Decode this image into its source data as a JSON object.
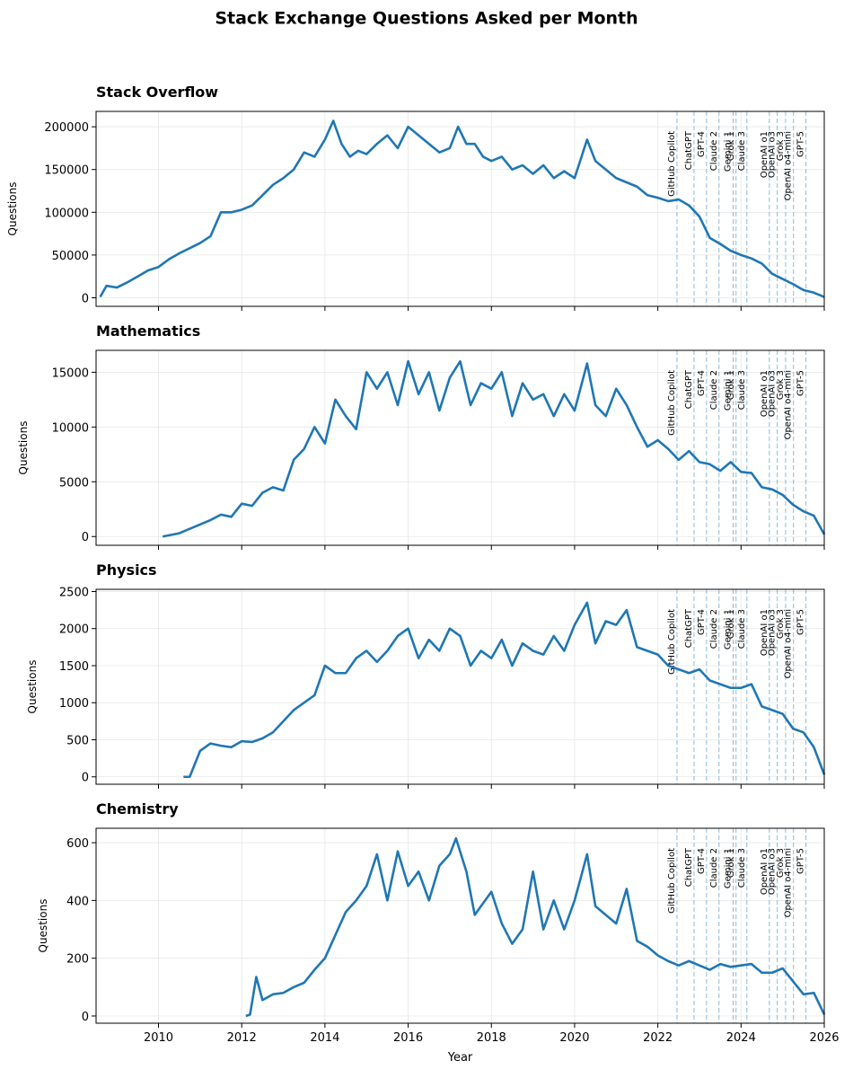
{
  "title": "Stack Exchange Questions Asked per Month",
  "chart_data": [
    {
      "type": "line",
      "title": "Stack Overflow",
      "ylabel": "Questions",
      "xlim": [
        2008.5,
        2026
      ],
      "xticks": [
        2010,
        2012,
        2014,
        2016,
        2018,
        2020,
        2022,
        2024,
        2026
      ],
      "ylim": [
        -10000,
        218000
      ],
      "yticks": [
        0,
        50000,
        100000,
        150000,
        200000
      ],
      "grid": true,
      "events": [
        {
          "label": "GitHub Copilot",
          "x": 2022.46
        },
        {
          "label": "ChatGPT",
          "x": 2022.87
        },
        {
          "label": "GPT-4",
          "x": 2023.17
        },
        {
          "label": "Claude 2",
          "x": 2023.47
        },
        {
          "label": "Gemini 1",
          "x": 2023.81
        },
        {
          "label": "Grok 1",
          "x": 2023.88
        },
        {
          "label": "Claude 3",
          "x": 2024.14
        },
        {
          "label": "OpenAI o1",
          "x": 2024.68
        },
        {
          "label": "OpenAI o3",
          "x": 2024.87
        },
        {
          "label": "Grok 3",
          "x": 2025.07
        },
        {
          "label": "OpenAI o4-mini",
          "x": 2025.26
        },
        {
          "label": "GPT-5",
          "x": 2025.56
        }
      ],
      "series": [
        {
          "name": "Stack Overflow",
          "color": "#1f77b4",
          "x": [
            2008.6,
            2008.75,
            2009,
            2009.25,
            2009.5,
            2009.75,
            2010,
            2010.25,
            2010.5,
            2010.75,
            2011,
            2011.25,
            2011.5,
            2011.75,
            2012,
            2012.25,
            2012.5,
            2012.75,
            2013,
            2013.25,
            2013.5,
            2013.75,
            2014,
            2014.2,
            2014.4,
            2014.6,
            2014.8,
            2015,
            2015.25,
            2015.5,
            2015.75,
            2016,
            2016.25,
            2016.5,
            2016.75,
            2017,
            2017.2,
            2017.4,
            2017.6,
            2017.8,
            2018,
            2018.25,
            2018.5,
            2018.75,
            2019,
            2019.25,
            2019.5,
            2019.75,
            2020,
            2020.3,
            2020.5,
            2020.75,
            2021,
            2021.25,
            2021.5,
            2021.75,
            2022,
            2022.25,
            2022.5,
            2022.75,
            2023,
            2023.25,
            2023.5,
            2023.75,
            2024,
            2024.25,
            2024.5,
            2024.75,
            2025,
            2025.25,
            2025.5,
            2025.75,
            2026
          ],
          "values": [
            1000,
            14000,
            12000,
            18000,
            25000,
            32000,
            36000,
            45000,
            52000,
            58000,
            64000,
            72000,
            100000,
            100000,
            103000,
            108000,
            120000,
            132000,
            140000,
            150000,
            170000,
            165000,
            185000,
            207000,
            180000,
            165000,
            172000,
            168000,
            180000,
            190000,
            175000,
            200000,
            190000,
            180000,
            170000,
            175000,
            200000,
            180000,
            180000,
            165000,
            160000,
            165000,
            150000,
            155000,
            145000,
            155000,
            140000,
            148000,
            140000,
            185000,
            160000,
            150000,
            140000,
            135000,
            130000,
            120000,
            117000,
            113000,
            115000,
            108000,
            95000,
            70000,
            63000,
            55000,
            50000,
            46000,
            40000,
            28000,
            22000,
            16000,
            9000,
            6000,
            1000
          ]
        }
      ]
    },
    {
      "type": "line",
      "title": "Mathematics",
      "ylabel": "Questions",
      "xlim": [
        2008.5,
        2026
      ],
      "xticks": [
        2010,
        2012,
        2014,
        2016,
        2018,
        2020,
        2022,
        2024,
        2026
      ],
      "ylim": [
        -800,
        17000
      ],
      "yticks": [
        0,
        5000,
        10000,
        15000
      ],
      "grid": true,
      "events": [
        {
          "label": "GitHub Copilot",
          "x": 2022.46
        },
        {
          "label": "ChatGPT",
          "x": 2022.87
        },
        {
          "label": "GPT-4",
          "x": 2023.17
        },
        {
          "label": "Claude 2",
          "x": 2023.47
        },
        {
          "label": "Gemini 1",
          "x": 2023.81
        },
        {
          "label": "Grok 1",
          "x": 2023.88
        },
        {
          "label": "Claude 3",
          "x": 2024.14
        },
        {
          "label": "OpenAI o1",
          "x": 2024.68
        },
        {
          "label": "OpenAI o3",
          "x": 2024.87
        },
        {
          "label": "Grok 3",
          "x": 2025.07
        },
        {
          "label": "OpenAI o4-mini",
          "x": 2025.26
        },
        {
          "label": "GPT-5",
          "x": 2025.56
        }
      ],
      "series": [
        {
          "name": "Mathematics",
          "color": "#1f77b4",
          "x": [
            2010.1,
            2010.5,
            2010.75,
            2011,
            2011.25,
            2011.5,
            2011.75,
            2012,
            2012.25,
            2012.5,
            2012.75,
            2013,
            2013.25,
            2013.5,
            2013.75,
            2014,
            2014.25,
            2014.5,
            2014.75,
            2015,
            2015.25,
            2015.5,
            2015.75,
            2016,
            2016.25,
            2016.5,
            2016.75,
            2017,
            2017.25,
            2017.5,
            2017.75,
            2018,
            2018.25,
            2018.5,
            2018.75,
            2019,
            2019.25,
            2019.5,
            2019.75,
            2020,
            2020.3,
            2020.5,
            2020.75,
            2021,
            2021.25,
            2021.5,
            2021.75,
            2022,
            2022.25,
            2022.5,
            2022.75,
            2023,
            2023.25,
            2023.5,
            2023.75,
            2024,
            2024.25,
            2024.5,
            2024.75,
            2025,
            2025.25,
            2025.5,
            2025.75,
            2026
          ],
          "values": [
            0,
            300,
            700,
            1100,
            1500,
            2000,
            1800,
            3000,
            2800,
            4000,
            4500,
            4200,
            7000,
            8000,
            10000,
            8500,
            12500,
            11000,
            9800,
            15000,
            13500,
            15000,
            12000,
            16000,
            13000,
            15000,
            11500,
            14500,
            16000,
            12000,
            14000,
            13500,
            15000,
            11000,
            14000,
            12500,
            13000,
            11000,
            13000,
            11500,
            15800,
            12000,
            11000,
            13500,
            12000,
            10000,
            8200,
            8800,
            8000,
            7000,
            7800,
            6800,
            6600,
            6000,
            6800,
            5900,
            5800,
            4500,
            4300,
            3800,
            2900,
            2300,
            1900,
            200
          ]
        }
      ]
    },
    {
      "type": "line",
      "title": "Physics",
      "ylabel": "Questions",
      "xlim": [
        2008.5,
        2026
      ],
      "xticks": [
        2010,
        2012,
        2014,
        2016,
        2018,
        2020,
        2022,
        2024,
        2026
      ],
      "ylim": [
        -100,
        2530
      ],
      "yticks": [
        0,
        500,
        1000,
        1500,
        2000,
        2500
      ],
      "grid": true,
      "events": [
        {
          "label": "GitHub Copilot",
          "x": 2022.46
        },
        {
          "label": "ChatGPT",
          "x": 2022.87
        },
        {
          "label": "GPT-4",
          "x": 2023.17
        },
        {
          "label": "Claude 2",
          "x": 2023.47
        },
        {
          "label": "Gemini 1",
          "x": 2023.81
        },
        {
          "label": "Grok 1",
          "x": 2023.88
        },
        {
          "label": "Claude 3",
          "x": 2024.14
        },
        {
          "label": "OpenAI o1",
          "x": 2024.68
        },
        {
          "label": "OpenAI o3",
          "x": 2024.87
        },
        {
          "label": "Grok 3",
          "x": 2025.07
        },
        {
          "label": "OpenAI o4-mini",
          "x": 2025.26
        },
        {
          "label": "GPT-5",
          "x": 2025.56
        }
      ],
      "series": [
        {
          "name": "Physics",
          "color": "#1f77b4",
          "x": [
            2010.6,
            2010.75,
            2011,
            2011.25,
            2011.5,
            2011.75,
            2012,
            2012.25,
            2012.5,
            2012.75,
            2013,
            2013.25,
            2013.5,
            2013.75,
            2014,
            2014.25,
            2014.5,
            2014.75,
            2015,
            2015.25,
            2015.5,
            2015.75,
            2016,
            2016.25,
            2016.5,
            2016.75,
            2017,
            2017.25,
            2017.5,
            2017.75,
            2018,
            2018.25,
            2018.5,
            2018.75,
            2019,
            2019.25,
            2019.5,
            2019.75,
            2020,
            2020.3,
            2020.5,
            2020.75,
            2021,
            2021.25,
            2021.5,
            2021.75,
            2022,
            2022.25,
            2022.5,
            2022.75,
            2023,
            2023.25,
            2023.5,
            2023.75,
            2024,
            2024.25,
            2024.5,
            2024.75,
            2025,
            2025.25,
            2025.5,
            2025.75,
            2026
          ],
          "values": [
            0,
            0,
            350,
            450,
            420,
            400,
            480,
            470,
            520,
            600,
            750,
            900,
            1000,
            1100,
            1500,
            1400,
            1400,
            1600,
            1700,
            1550,
            1700,
            1900,
            2000,
            1600,
            1850,
            1700,
            2000,
            1900,
            1500,
            1700,
            1600,
            1850,
            1500,
            1800,
            1700,
            1650,
            1900,
            1700,
            2050,
            2350,
            1800,
            2100,
            2050,
            2250,
            1750,
            1700,
            1650,
            1500,
            1450,
            1400,
            1450,
            1300,
            1250,
            1200,
            1200,
            1250,
            950,
            900,
            850,
            650,
            600,
            400,
            30
          ]
        }
      ]
    },
    {
      "type": "line",
      "title": "Chemistry",
      "ylabel": "Questions",
      "xlabel": "Year",
      "xlim": [
        2008.5,
        2026
      ],
      "xticks": [
        2010,
        2012,
        2014,
        2016,
        2018,
        2020,
        2022,
        2024,
        2026
      ],
      "ylim": [
        -25,
        650
      ],
      "yticks": [
        0,
        200,
        400,
        600
      ],
      "grid": true,
      "events": [
        {
          "label": "GitHub Copilot",
          "x": 2022.46
        },
        {
          "label": "ChatGPT",
          "x": 2022.87
        },
        {
          "label": "GPT-4",
          "x": 2023.17
        },
        {
          "label": "Claude 2",
          "x": 2023.47
        },
        {
          "label": "Gemini 1",
          "x": 2023.81
        },
        {
          "label": "Grok 1",
          "x": 2023.88
        },
        {
          "label": "Claude 3",
          "x": 2024.14
        },
        {
          "label": "OpenAI o1",
          "x": 2024.68
        },
        {
          "label": "OpenAI o3",
          "x": 2024.87
        },
        {
          "label": "Grok 3",
          "x": 2025.07
        },
        {
          "label": "OpenAI o4-mini",
          "x": 2025.26
        },
        {
          "label": "GPT-5",
          "x": 2025.56
        }
      ],
      "series": [
        {
          "name": "Chemistry",
          "color": "#1f77b4",
          "x": [
            2012.1,
            2012.2,
            2012.35,
            2012.5,
            2012.75,
            2013,
            2013.25,
            2013.5,
            2013.75,
            2014,
            2014.25,
            2014.5,
            2014.75,
            2015,
            2015.25,
            2015.5,
            2015.75,
            2016,
            2016.25,
            2016.5,
            2016.75,
            2017,
            2017.15,
            2017.4,
            2017.6,
            2017.75,
            2018,
            2018.25,
            2018.5,
            2018.75,
            2019,
            2019.25,
            2019.5,
            2019.75,
            2020,
            2020.3,
            2020.5,
            2020.75,
            2021,
            2021.25,
            2021.5,
            2021.75,
            2022,
            2022.25,
            2022.5,
            2022.75,
            2023,
            2023.25,
            2023.5,
            2023.75,
            2024,
            2024.25,
            2024.5,
            2024.75,
            2025,
            2025.25,
            2025.5,
            2025.75,
            2026
          ],
          "values": [
            0,
            5,
            135,
            55,
            75,
            80,
            100,
            115,
            160,
            200,
            280,
            360,
            400,
            450,
            560,
            400,
            570,
            450,
            500,
            400,
            520,
            560,
            615,
            500,
            350,
            380,
            430,
            320,
            250,
            300,
            500,
            300,
            400,
            300,
            400,
            560,
            380,
            350,
            320,
            440,
            260,
            240,
            210,
            190,
            175,
            190,
            175,
            160,
            180,
            170,
            175,
            180,
            150,
            150,
            165,
            120,
            75,
            80,
            5
          ]
        }
      ]
    }
  ]
}
